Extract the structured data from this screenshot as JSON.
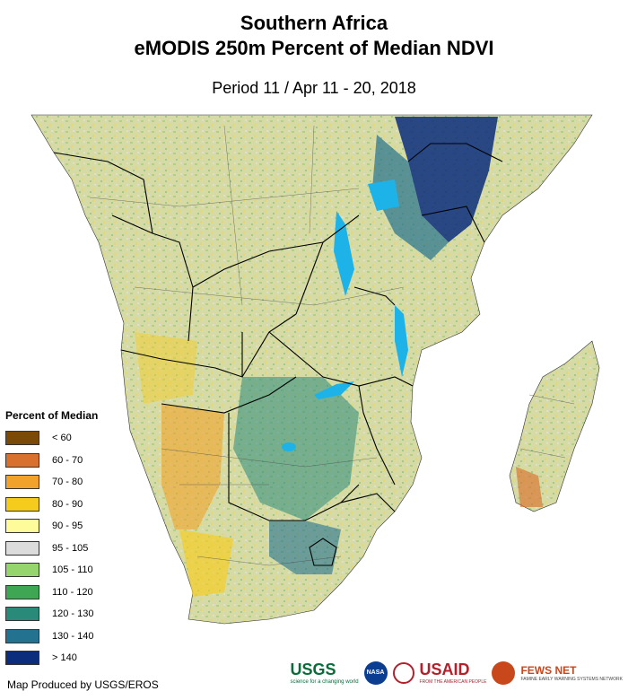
{
  "header": {
    "title_line1": "Southern Africa",
    "title_line2": "eMODIS 250m Percent of Median NDVI",
    "period": "Period 11 / Apr 11 - 20, 2018"
  },
  "legend": {
    "title": "Percent of Median",
    "classes": [
      {
        "label": "< 60",
        "color": "#7a4a06"
      },
      {
        "label": "60 - 70",
        "color": "#d8712d"
      },
      {
        "label": "70 - 80",
        "color": "#f0a22a"
      },
      {
        "label": "80 - 90",
        "color": "#f6cc1c"
      },
      {
        "label": "90 - 95",
        "color": "#fdfb9a"
      },
      {
        "label": "95 - 105",
        "color": "#dcdcdc"
      },
      {
        "label": "105 - 110",
        "color": "#96d46e"
      },
      {
        "label": "110 - 120",
        "color": "#3fa653"
      },
      {
        "label": "120 - 130",
        "color": "#2a8a7a"
      },
      {
        "label": "130 - 140",
        "color": "#23728f"
      },
      {
        "label": "> 140",
        "color": "#0b2d7c"
      }
    ]
  },
  "map": {
    "ocean_color": "#ffffff",
    "land_base_color": "#d8dca8",
    "lake_color": "#1eb3e8",
    "border_color": "#000000"
  },
  "footer": {
    "credit": "Map Produced by USGS/EROS",
    "logos": {
      "usgs": "USGS",
      "usgs_tagline": "science for a changing world",
      "nasa": "NASA",
      "usaid": "USAID",
      "usaid_tagline": "FROM THE AMERICAN PEOPLE",
      "fews": "FEWS NET",
      "fews_tagline": "FAMINE EARLY WARNING SYSTEMS NETWORK"
    }
  }
}
